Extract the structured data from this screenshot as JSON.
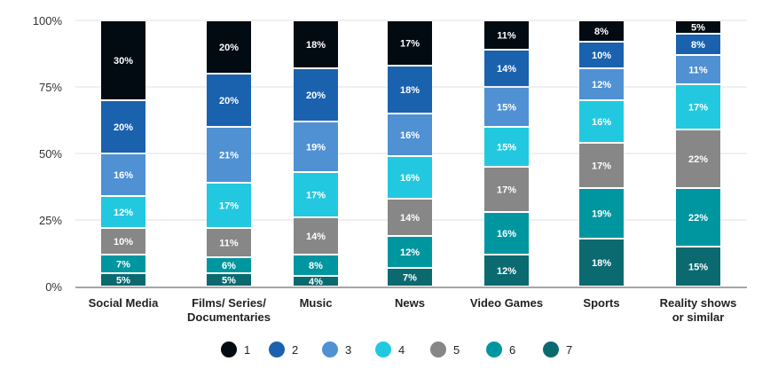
{
  "chart_data": {
    "type": "bar",
    "stacked": true,
    "normalized": true,
    "title": "",
    "xlabel": "",
    "ylabel": "",
    "ylim": [
      0,
      100
    ],
    "yticks": [
      "0%",
      "25%",
      "50%",
      "75%",
      "100%"
    ],
    "ytick_values": [
      0,
      25,
      50,
      75,
      100
    ],
    "grid": true,
    "legend_position": "bottom",
    "categories": [
      "Social Media",
      "Films/ Series/ Documentaries",
      "Music",
      "News",
      "Video Games",
      "Sports",
      "Reality shows or similar"
    ],
    "category_lines": [
      [
        "Social Media"
      ],
      [
        "Films/ Series/",
        "Documentaries"
      ],
      [
        "Music"
      ],
      [
        "News"
      ],
      [
        "Video Games"
      ],
      [
        "Sports"
      ],
      [
        "Reality shows",
        "or similar"
      ]
    ],
    "series": [
      {
        "name": "7",
        "color": "#0b6a70",
        "values": [
          5,
          5,
          4,
          7,
          12,
          18,
          15
        ]
      },
      {
        "name": "6",
        "color": "#0096a0",
        "values": [
          7,
          6,
          8,
          12,
          16,
          19,
          22
        ]
      },
      {
        "name": "5",
        "color": "#878787",
        "values": [
          10,
          11,
          14,
          14,
          17,
          17,
          22
        ]
      },
      {
        "name": "4",
        "color": "#22c8df",
        "values": [
          12,
          17,
          17,
          16,
          15,
          16,
          17
        ]
      },
      {
        "name": "3",
        "color": "#4f91d3",
        "values": [
          16,
          21,
          19,
          16,
          15,
          12,
          11
        ]
      },
      {
        "name": "2",
        "color": "#1a62ae",
        "values": [
          20,
          20,
          20,
          18,
          14,
          10,
          8
        ]
      },
      {
        "name": "1",
        "color": "#020a12",
        "values": [
          30,
          20,
          18,
          17,
          11,
          8,
          5
        ]
      }
    ],
    "legend_order": [
      "1",
      "2",
      "3",
      "4",
      "5",
      "6",
      "7"
    ]
  }
}
